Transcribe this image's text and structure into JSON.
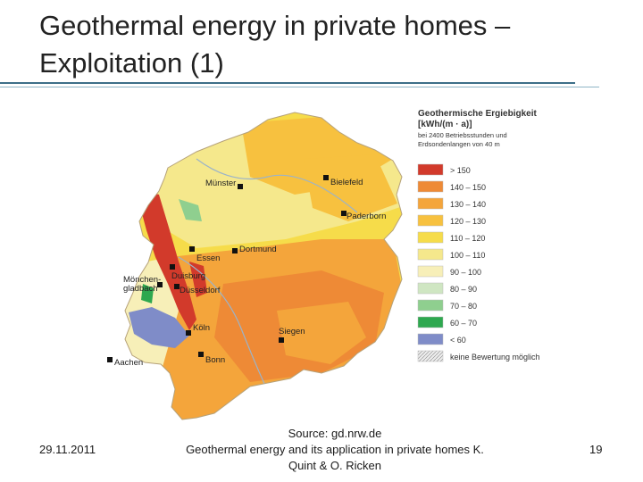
{
  "slide": {
    "title_line1": "Geothermal energy in private homes –",
    "title_line2": "Exploitation (1)",
    "date": "29.11.2011",
    "source_line1": "Source: gd.nrw.de",
    "source_line2": "Geothermal energy and its application in private homes  K.",
    "source_line3": "Quint & O. Ricken",
    "page_number": "19"
  },
  "legend": {
    "title_line1": "Geothermische Ergiebigkeit",
    "title_line2": "[kWh/(m · a)]",
    "subtitle_line1": "bei 2400 Betriebsstunden und",
    "subtitle_line2": "Erdsondenlangen von 40 m",
    "items": [
      {
        "label": "> 150",
        "color": "#d23a2b"
      },
      {
        "label": "140 – 150",
        "color": "#ee8a36"
      },
      {
        "label": "130 – 140",
        "color": "#f4a53b"
      },
      {
        "label": "120 – 130",
        "color": "#f7c13f"
      },
      {
        "label": "110 – 120",
        "color": "#f6dc4a"
      },
      {
        "label": "100 – 110",
        "color": "#f5e88c"
      },
      {
        "label": "90 – 100",
        "color": "#f7efb8"
      },
      {
        "label": "80 –  90",
        "color": "#cfe6c2"
      },
      {
        "label": "70 –  80",
        "color": "#8fcf8f"
      },
      {
        "label": "60 –  70",
        "color": "#2ea84f"
      },
      {
        "label": "< 60",
        "color": "#7f8cc8"
      },
      {
        "label": "keine Bewertung möglich",
        "color": "#e4e4e4"
      }
    ]
  },
  "cities": [
    {
      "name": "Münster"
    },
    {
      "name": "Bielefeld"
    },
    {
      "name": "Paderborn"
    },
    {
      "name": "Dortmund"
    },
    {
      "name": "Essen"
    },
    {
      "name": "Duisburg"
    },
    {
      "name": "Düsseldorf"
    },
    {
      "name": "Mönchen-"
    },
    {
      "name": "gladbach"
    },
    {
      "name": "Köln"
    },
    {
      "name": "Siegen"
    },
    {
      "name": "Aachen"
    },
    {
      "name": "Bonn"
    }
  ]
}
